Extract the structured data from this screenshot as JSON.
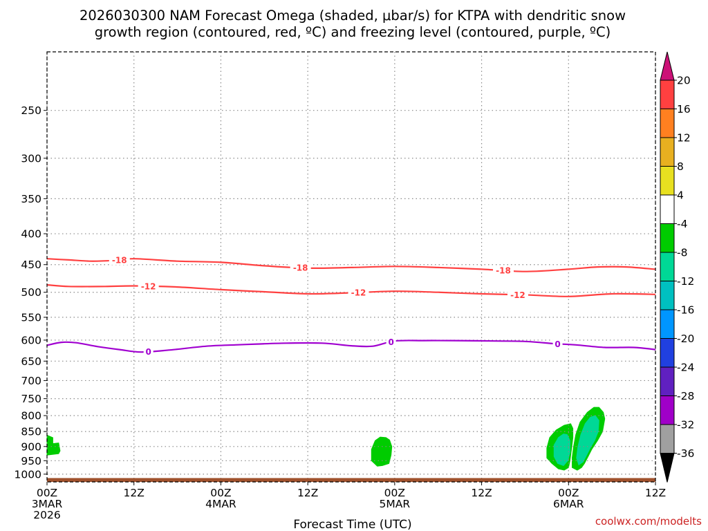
{
  "chart_data": {
    "type": "time-height cross section",
    "title_line1": "2026030300 NAM Forecast Omega (shaded, μbar/s) for KTPA with dendritic snow",
    "title_line2": "growth region (contoured, red, ºC) and freezing level (contoured, purple, ºC)",
    "xlabel": "Forecast Time (UTC)",
    "ylabel": "",
    "credit": "coolwx.com/modelts",
    "x_range_hours": [
      0,
      84
    ],
    "y_range_hpa": [
      200,
      1030
    ],
    "y_scale": "log-pressure",
    "grid": true,
    "x_ticks": [
      {
        "hour": 0,
        "line1": "00Z",
        "line2": "3MAR",
        "line3": "2026"
      },
      {
        "hour": 12,
        "line1": "12Z",
        "line2": "",
        "line3": ""
      },
      {
        "hour": 24,
        "line1": "00Z",
        "line2": "4MAR",
        "line3": ""
      },
      {
        "hour": 36,
        "line1": "12Z",
        "line2": "",
        "line3": ""
      },
      {
        "hour": 48,
        "line1": "00Z",
        "line2": "5MAR",
        "line3": ""
      },
      {
        "hour": 60,
        "line1": "12Z",
        "line2": "",
        "line3": ""
      },
      {
        "hour": 72,
        "line1": "00Z",
        "line2": "6MAR",
        "line3": ""
      },
      {
        "hour": 84,
        "line1": "12Z",
        "line2": "",
        "line3": ""
      }
    ],
    "y_ticks": [
      "250",
      "300",
      "350",
      "400",
      "450",
      "500",
      "550",
      "600",
      "650",
      "700",
      "750",
      "800",
      "850",
      "900",
      "950",
      "1000"
    ],
    "contours": [
      {
        "name": "-18 C isotherm",
        "color": "#ff4040",
        "level_label": "-18",
        "points": [
          [
            0,
            440
          ],
          [
            3,
            442
          ],
          [
            6,
            444
          ],
          [
            9,
            443
          ],
          [
            12,
            440
          ],
          [
            18,
            444
          ],
          [
            24,
            446
          ],
          [
            30,
            452
          ],
          [
            36,
            456
          ],
          [
            42,
            455
          ],
          [
            48,
            453
          ],
          [
            54,
            455
          ],
          [
            60,
            458
          ],
          [
            66,
            462
          ],
          [
            72,
            458
          ],
          [
            76,
            454
          ],
          [
            80,
            454
          ],
          [
            84,
            458
          ]
        ],
        "label_hours": [
          10,
          35,
          63
        ]
      },
      {
        "name": "-12 C isotherm",
        "color": "#ff4040",
        "level_label": "-12",
        "points": [
          [
            0,
            486
          ],
          [
            3,
            489
          ],
          [
            8,
            489
          ],
          [
            12,
            488
          ],
          [
            18,
            490
          ],
          [
            24,
            495
          ],
          [
            30,
            499
          ],
          [
            36,
            503
          ],
          [
            42,
            501
          ],
          [
            48,
            498
          ],
          [
            54,
            500
          ],
          [
            60,
            503
          ],
          [
            66,
            505
          ],
          [
            72,
            508
          ],
          [
            78,
            503
          ],
          [
            84,
            504
          ]
        ],
        "label_hours": [
          14,
          43,
          65
        ]
      },
      {
        "name": "0 C freezing level",
        "color": "#a000d0",
        "level_label": "0",
        "points": [
          [
            0,
            612
          ],
          [
            2,
            605
          ],
          [
            4,
            606
          ],
          [
            7,
            615
          ],
          [
            10,
            622
          ],
          [
            13,
            628
          ],
          [
            17,
            623
          ],
          [
            22,
            614
          ],
          [
            26,
            611
          ],
          [
            29,
            609
          ],
          [
            33,
            607
          ],
          [
            38,
            607
          ],
          [
            42,
            613
          ],
          [
            45,
            614
          ],
          [
            48,
            602
          ],
          [
            52,
            601
          ],
          [
            56,
            601
          ],
          [
            62,
            602
          ],
          [
            66,
            603
          ],
          [
            70,
            608
          ],
          [
            73,
            611
          ],
          [
            77,
            617
          ],
          [
            81,
            617
          ],
          [
            84,
            622
          ]
        ],
        "label_hours": [
          14,
          47.5,
          70.5
        ]
      }
    ],
    "shaded_regions": [
      {
        "name": "omega-region-1",
        "band": "-8 to -4",
        "color": "#00cc00",
        "points": [
          [
            0,
            862
          ],
          [
            0.8,
            870
          ],
          [
            0.8,
            890
          ],
          [
            1.6,
            888
          ],
          [
            1.8,
            915
          ],
          [
            1.6,
            925
          ],
          [
            0,
            930
          ]
        ]
      },
      {
        "name": "omega-region-2",
        "band": "-8 to -4",
        "color": "#00cc00",
        "points": [
          [
            46.8,
            870
          ],
          [
            47.3,
            878
          ],
          [
            47.6,
            900
          ],
          [
            47.5,
            930
          ],
          [
            47.2,
            960
          ],
          [
            46.3,
            968
          ],
          [
            45.6,
            970
          ],
          [
            44.8,
            950
          ],
          [
            44.8,
            910
          ],
          [
            45.3,
            880
          ],
          [
            46,
            868
          ]
        ]
      },
      {
        "name": "omega-region-3",
        "band": "-8 to -4",
        "color": "#00cc00",
        "points": [
          [
            72.3,
            825
          ],
          [
            72.6,
            840
          ],
          [
            72.6,
            870
          ],
          [
            72.4,
            910
          ],
          [
            72.2,
            950
          ],
          [
            72,
            975
          ],
          [
            71.4,
            985
          ],
          [
            70.6,
            980
          ],
          [
            69.7,
            960
          ],
          [
            69,
            940
          ],
          [
            69,
            905
          ],
          [
            69.4,
            870
          ],
          [
            70.3,
            845
          ],
          [
            71.4,
            830
          ]
        ]
      },
      {
        "name": "omega-region-4",
        "band": "-8 to -4",
        "color": "#00cc00",
        "points": [
          [
            76.2,
            775
          ],
          [
            76.8,
            790
          ],
          [
            77,
            810
          ],
          [
            76.7,
            850
          ],
          [
            76,
            880
          ],
          [
            75.2,
            910
          ],
          [
            74.7,
            935
          ],
          [
            74.2,
            960
          ],
          [
            73.8,
            975
          ],
          [
            73.2,
            985
          ],
          [
            72.5,
            975
          ],
          [
            72.5,
            940
          ],
          [
            72.7,
            900
          ],
          [
            73,
            860
          ],
          [
            73.6,
            820
          ],
          [
            74.6,
            790
          ],
          [
            75.5,
            775
          ]
        ]
      },
      {
        "name": "omega-core-3",
        "band": "-12 to -8",
        "color": "#00d896",
        "points": [
          [
            71.8,
            860
          ],
          [
            72.2,
            880
          ],
          [
            72.2,
            920
          ],
          [
            71.9,
            950
          ],
          [
            71.3,
            968
          ],
          [
            70.5,
            960
          ],
          [
            70,
            935
          ],
          [
            70,
            895
          ],
          [
            70.6,
            870
          ],
          [
            71.3,
            858
          ]
        ]
      },
      {
        "name": "omega-core-4",
        "band": "-12 to -8",
        "color": "#00d896",
        "points": [
          [
            75.7,
            800
          ],
          [
            76.2,
            815
          ],
          [
            76.1,
            850
          ],
          [
            75.6,
            880
          ],
          [
            75,
            905
          ],
          [
            74.5,
            930
          ],
          [
            74,
            955
          ],
          [
            73.4,
            965
          ],
          [
            73.1,
            940
          ],
          [
            73.3,
            900
          ],
          [
            73.7,
            860
          ],
          [
            74.3,
            825
          ],
          [
            75,
            805
          ]
        ]
      }
    ],
    "terrain_band": {
      "name": "surface",
      "color": "#a0522d",
      "top_hpa": 1015
    },
    "colorbar": {
      "bands": [
        {
          "color": "#cc1177",
          "label": "20"
        },
        {
          "color": "#ff4040",
          "label": "16"
        },
        {
          "color": "#ff8020",
          "label": "12"
        },
        {
          "color": "#e8b020",
          "label": "8"
        },
        {
          "color": "#e8e020",
          "label": "4"
        },
        {
          "color": "#ffffff",
          "label": "-4"
        },
        {
          "color": "#00cc00",
          "label": "-8"
        },
        {
          "color": "#00d896",
          "label": "-12"
        },
        {
          "color": "#00c0c0",
          "label": "-16"
        },
        {
          "color": "#0096ff",
          "label": "-20"
        },
        {
          "color": "#2040e0",
          "label": "-24"
        },
        {
          "color": "#6020c0",
          "label": "-28"
        },
        {
          "color": "#a000c8",
          "label": "-32"
        },
        {
          "color": "#a0a0a0",
          "label": "-36"
        },
        {
          "color": "#000000",
          "label": ""
        }
      ]
    }
  }
}
